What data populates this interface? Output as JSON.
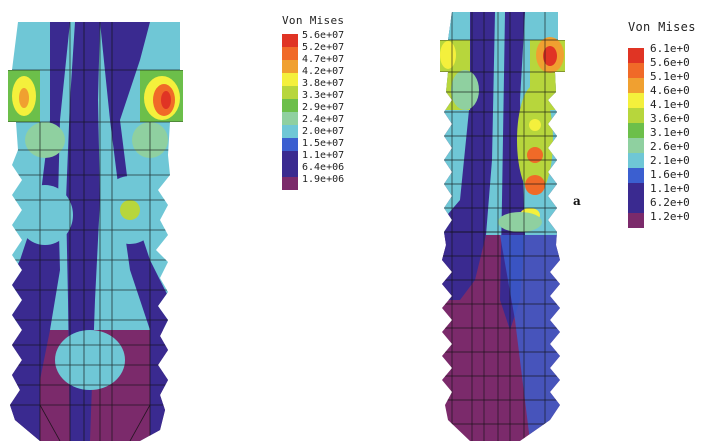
{
  "palette": [
    "#7b2a6b",
    "#3a2a90",
    "#3b5fd0",
    "#6fc7d6",
    "#8fd0a0",
    "#6cbf4a",
    "#b7d63c",
    "#f4f03c",
    "#f0a030",
    "#f06a28",
    "#e03424"
  ],
  "left_panel": {
    "legend_title": "Von Mises",
    "legend_labels": [
      "5.6e+07",
      "5.2e+07",
      "4.7e+07",
      "4.2e+07",
      "3.8e+07",
      "3.3e+07",
      "2.9e+07",
      "2.4e+07",
      "2.0e+07",
      "1.5e+07",
      "1.1e+07",
      "6.4e+06",
      "1.9e+06"
    ]
  },
  "right_panel": {
    "legend_title": "Von Mises",
    "legend_labels": [
      "6.1e+0",
      "5.6e+0",
      "5.1e+0",
      "4.6e+0",
      "4.1e+0",
      "3.6e+0",
      "3.1e+0",
      "2.6e+0",
      "2.1e+0",
      "1.6e+0",
      "1.1e+0",
      "6.2e+0",
      "1.2e+0"
    ],
    "figure_letter": "a"
  }
}
